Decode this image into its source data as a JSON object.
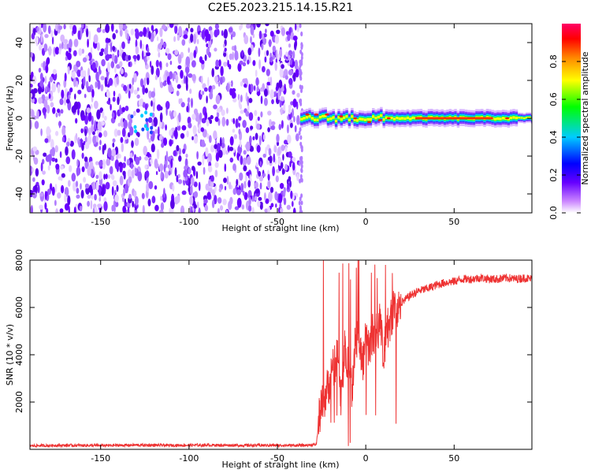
{
  "title": "C2E5.2023.215.14.15.R21",
  "chart_data": [
    {
      "type": "heatmap",
      "xlabel": "Height of straight line (km)",
      "ylabel": "Frequency (Hz)",
      "xlim": [
        -190,
        94
      ],
      "ylim": [
        -50,
        50
      ],
      "xticks": [
        -150,
        -100,
        -50,
        0,
        50
      ],
      "yticks": [
        -40,
        -20,
        0,
        20,
        40
      ],
      "colorbar": {
        "label": "Normalized spectral amplitude",
        "range": [
          0,
          1
        ],
        "ticks": [
          "0.0",
          "0.2",
          "0.4",
          "0.6",
          "0.8"
        ],
        "colors": [
          "#ffffff",
          "#8800ff",
          "#0000ff",
          "#00ccff",
          "#00ff00",
          "#ffff00",
          "#ff8800",
          "#ff0000",
          "#ff0066"
        ]
      },
      "regions": [
        {
          "x": [
            -190,
            -38
          ],
          "description": "noise",
          "amplitude_range": [
            0.0,
            0.25
          ]
        },
        {
          "x": [
            -37,
            94
          ],
          "description": "signal",
          "center_frequency_hz": 0,
          "amplitude_peak": 0.95
        }
      ]
    },
    {
      "type": "line",
      "xlabel": "Height of straight line (km)",
      "ylabel": "SNR (10 * v/v)",
      "xlim": [
        -190,
        94
      ],
      "ylim": [
        0,
        8000
      ],
      "xticks": [
        -150,
        -100,
        -50,
        0,
        50
      ],
      "yticks": [
        2000,
        4000,
        6000,
        8000
      ],
      "color": "#ee3333",
      "series": [
        {
          "x": [
            -190,
            -170,
            -150,
            -130,
            -110,
            -90,
            -70,
            -50,
            -35,
            -28,
            -26,
            -24,
            -22,
            -20,
            -18,
            -16,
            -14,
            -12,
            -10,
            -8,
            -6,
            -4,
            -2,
            0,
            2,
            4,
            6,
            8,
            10,
            12,
            14,
            16,
            18,
            20,
            22,
            25,
            30,
            35,
            40,
            45,
            50,
            55,
            60,
            65,
            70,
            75,
            80,
            85,
            90,
            94
          ],
          "y": [
            150,
            170,
            160,
            180,
            170,
            180,
            170,
            170,
            170,
            200,
            1500,
            2000,
            2500,
            3000,
            3500,
            4000,
            2000,
            4200,
            3800,
            2500,
            4500,
            5000,
            3500,
            4600,
            4200,
            5000,
            4800,
            5500,
            3800,
            5000,
            5500,
            6000,
            5800,
            6200,
            6300,
            6500,
            6700,
            6800,
            6950,
            7050,
            7100,
            7200,
            7200,
            7250,
            7200,
            7200,
            7250,
            7200,
            7250,
            7200
          ]
        }
      ]
    }
  ]
}
